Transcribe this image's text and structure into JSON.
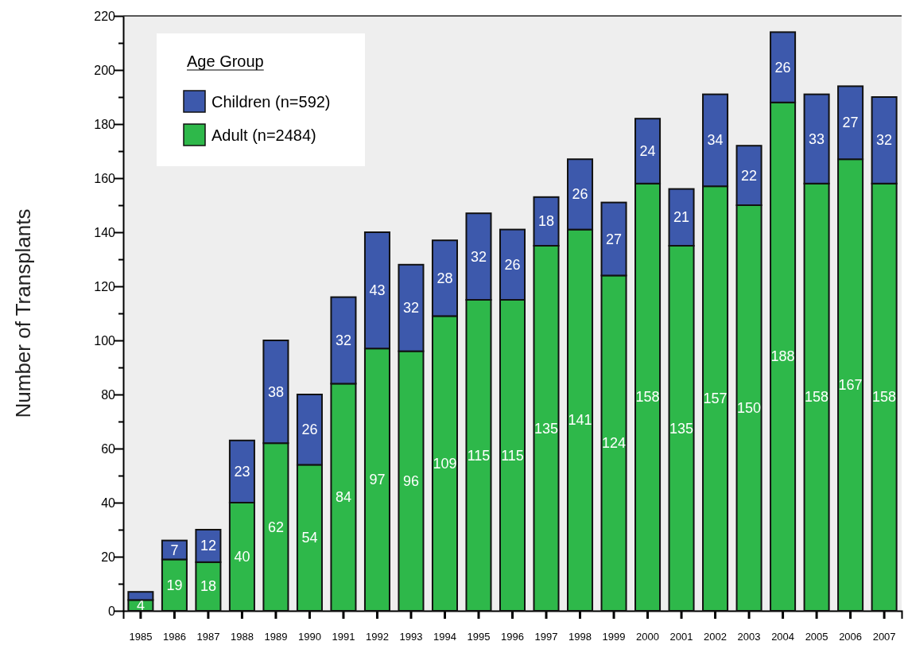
{
  "chart_data": {
    "type": "bar",
    "stacked": true,
    "ylabel": "Number of Transplants",
    "legend_title": "Age Group",
    "legend": "top left",
    "categories": [
      "1985",
      "1986",
      "1987",
      "1988",
      "1989",
      "1990",
      "1991",
      "1992",
      "1993",
      "1994",
      "1995",
      "1996",
      "1997",
      "1998",
      "1999",
      "2000",
      "2001",
      "2002",
      "2003",
      "2004",
      "2005",
      "2006",
      "2007"
    ],
    "series": [
      {
        "name": "Adult (n=2484)",
        "color": "#2eb84a",
        "values": [
          4,
          19,
          18,
          40,
          62,
          54,
          84,
          97,
          96,
          109,
          115,
          115,
          135,
          141,
          124,
          158,
          135,
          157,
          150,
          188,
          158,
          167,
          158
        ],
        "value_labels": [
          "4",
          "19",
          "18",
          "40",
          "62",
          "54",
          "84",
          "97",
          "96",
          "109",
          "115",
          "115",
          "135",
          "141",
          "124",
          "158",
          "135",
          "157",
          "150",
          "188",
          "158",
          "167",
          "158"
        ]
      },
      {
        "name": "Children (n=592)",
        "color": "#3d59ac",
        "values": [
          3,
          7,
          12,
          23,
          38,
          26,
          32,
          43,
          32,
          28,
          32,
          26,
          18,
          26,
          27,
          24,
          21,
          34,
          22,
          26,
          33,
          27,
          32
        ],
        "value_labels": [
          null,
          "7",
          "12",
          "23",
          "38",
          "26",
          "32",
          "43",
          "32",
          "28",
          "32",
          "26",
          "18",
          "26",
          "27",
          "24",
          "21",
          "34",
          "22",
          "26",
          "33",
          "27",
          "32"
        ]
      }
    ],
    "ylim": [
      0,
      220
    ],
    "yticks": [
      0,
      {
        "value": 10,
        "label": null
      },
      20,
      {
        "value": 30,
        "label": null
      },
      40,
      {
        "value": 50,
        "label": null
      },
      60,
      {
        "value": 70,
        "label": null
      },
      80,
      {
        "value": 90,
        "label": null
      },
      100,
      {
        "value": 110,
        "label": null
      },
      120,
      {
        "value": 130,
        "label": null
      },
      140,
      {
        "value": 150,
        "label": null
      },
      160,
      {
        "value": 170,
        "label": null
      },
      180,
      {
        "value": 190,
        "label": null
      },
      200,
      {
        "value": 210,
        "label": null
      },
      220
    ],
    "grid": false
  }
}
